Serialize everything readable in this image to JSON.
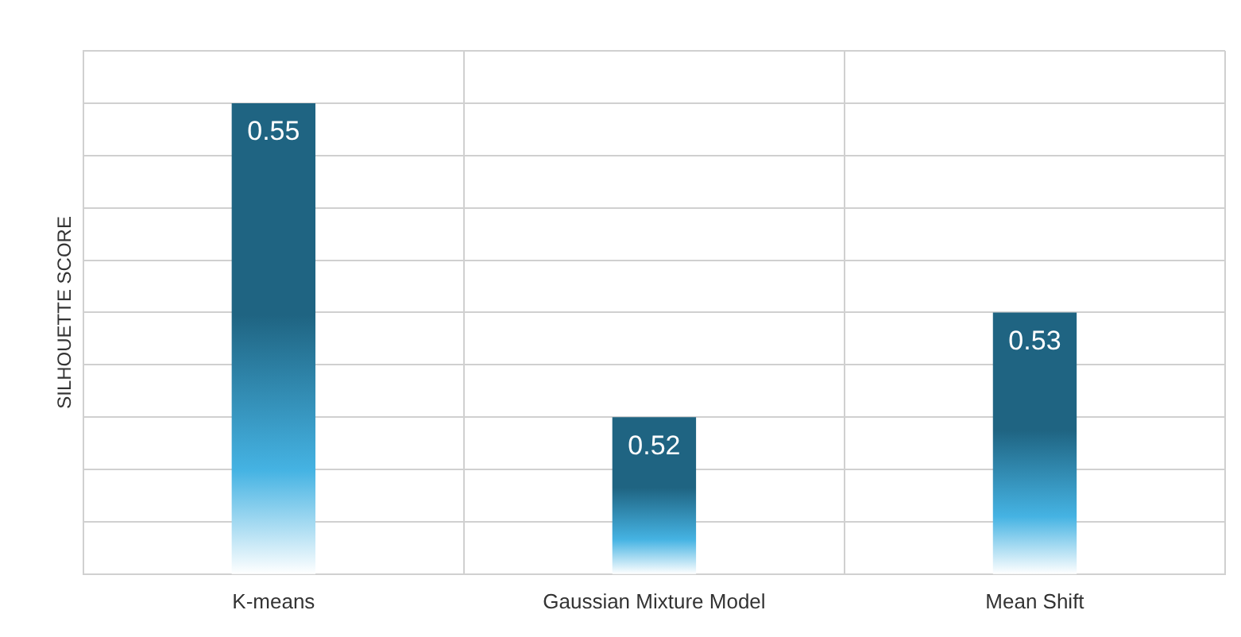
{
  "chart_data": {
    "type": "bar",
    "ylabel": "SILHOUETTE SCORE",
    "categories": [
      "K-means",
      "Gaussian Mixture Model",
      "Mean Shift"
    ],
    "values": [
      0.55,
      0.52,
      0.53
    ],
    "color": "#1f6482",
    "ylim": [
      0.505,
      0.555
    ],
    "yticks": [
      {
        "value": 0.505,
        "label": null
      },
      {
        "value": 0.51,
        "label": null
      },
      {
        "value": 0.515,
        "label": null
      },
      {
        "value": 0.52,
        "label": null
      },
      {
        "value": 0.525,
        "label": null
      },
      {
        "value": 0.53,
        "label": null
      },
      {
        "value": 0.535,
        "label": null
      },
      {
        "value": 0.54,
        "label": null
      },
      {
        "value": 0.545,
        "label": null
      },
      {
        "value": 0.55,
        "label": null
      },
      {
        "value": 0.555,
        "label": null
      }
    ],
    "tick_labels": "x",
    "grid": true,
    "data_labels": true
  }
}
